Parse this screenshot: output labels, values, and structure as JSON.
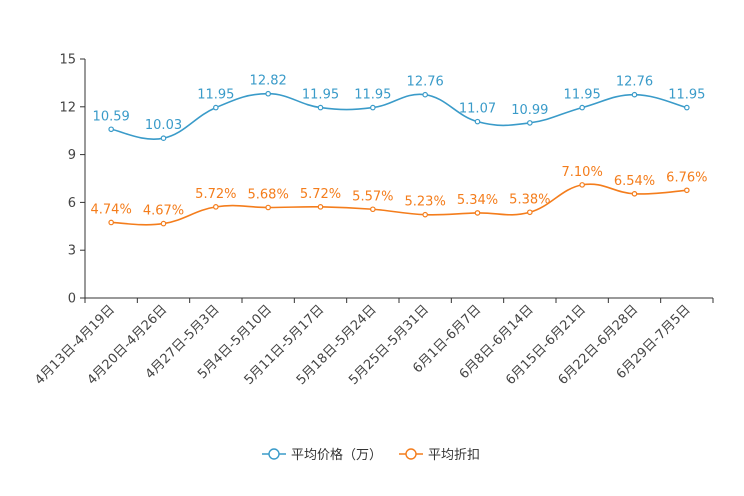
{
  "chart_data": {
    "type": "line",
    "title": "",
    "xlabel": "",
    "ylabel": "",
    "ylim": [
      0,
      15
    ],
    "yticks": [
      0,
      3,
      6,
      9,
      12,
      15
    ],
    "grid": false,
    "legend_position": "bottom",
    "categories": [
      "4月13日-4月19日",
      "4月20日-4月26日",
      "4月27日-5月3日",
      "5月4日-5月10日",
      "5月11日-5月17日",
      "5月18日-5月24日",
      "5月25日-5月31日",
      "6月1日-6月7日",
      "6月8日-6月14日",
      "6月15日-6月21日",
      "6月22日-6月28日",
      "6月29日-7月5日"
    ],
    "series": [
      {
        "name": "平均价格（万）",
        "color": "#3a9bc9",
        "values": [
          10.59,
          10.03,
          11.95,
          12.82,
          11.95,
          11.95,
          12.76,
          11.07,
          10.99,
          11.95,
          12.76,
          11.95
        ],
        "labels": [
          "10.59",
          "10.03",
          "11.95",
          "12.82",
          "11.95",
          "11.95",
          "12.76",
          "11.07",
          "10.99",
          "11.95",
          "12.76",
          "11.95"
        ]
      },
      {
        "name": "平均折扣",
        "color": "#f47d1c",
        "values": [
          4.74,
          4.67,
          5.72,
          5.68,
          5.72,
          5.57,
          5.23,
          5.34,
          5.38,
          7.1,
          6.54,
          6.76
        ],
        "labels": [
          "4.74%",
          "4.67%",
          "5.72%",
          "5.68%",
          "5.72%",
          "5.57%",
          "5.23%",
          "5.34%",
          "5.38%",
          "7.10%",
          "6.54%",
          "6.76%"
        ]
      }
    ]
  }
}
